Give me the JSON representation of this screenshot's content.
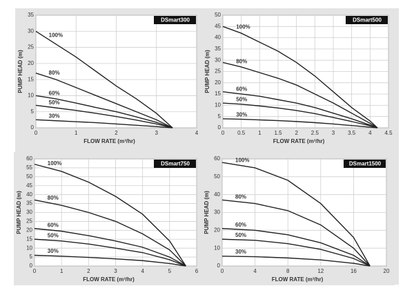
{
  "chart_data": [
    {
      "type": "line",
      "title": "DSmart300",
      "x_label": "FLOW RATE (m³/hr)",
      "y_label": "PUMP HEAD (m)",
      "x": [
        0,
        0.5,
        1,
        1.5,
        2,
        2.5,
        3,
        3.4
      ],
      "series": [
        {
          "name": "100%",
          "color": "#222222",
          "values": [
            30,
            26,
            22,
            17.5,
            13,
            9,
            4.5,
            0
          ]
        },
        {
          "name": "80%",
          "color": "#222222",
          "values": [
            17,
            15,
            12.5,
            10,
            7.5,
            5,
            2.5,
            0
          ]
        },
        {
          "name": "60%",
          "color": "#222222",
          "values": [
            10,
            9,
            7.7,
            6.3,
            5,
            3.4,
            1.7,
            0
          ]
        },
        {
          "name": "50%",
          "color": "#222222",
          "values": [
            7,
            6.2,
            5.4,
            4.5,
            3.5,
            2.4,
            1.2,
            0
          ]
        },
        {
          "name": "30%",
          "color": "#222222",
          "values": [
            2.5,
            2.2,
            1.9,
            1.6,
            1.2,
            0.8,
            0.4,
            0
          ]
        }
      ],
      "xlim": [
        0,
        4
      ],
      "xticks": [
        0,
        1,
        2,
        3,
        4
      ],
      "ylim": [
        0,
        35
      ],
      "yticks": [
        0,
        5,
        10,
        15,
        20,
        25,
        30,
        35
      ],
      "grid": true
    },
    {
      "type": "line",
      "title": "DSmart500",
      "x_label": "FLOW RATE (m³/hr)",
      "y_label": "PUMP HEAD (m)",
      "x": [
        0,
        0.5,
        1,
        1.5,
        2,
        2.5,
        3,
        3.5,
        4,
        4.2
      ],
      "series": [
        {
          "name": "100%",
          "color": "#222222",
          "values": [
            45,
            42,
            38,
            34,
            29,
            23,
            16,
            9,
            3,
            0
          ]
        },
        {
          "name": "80%",
          "color": "#222222",
          "values": [
            29,
            27,
            24.5,
            22,
            19,
            15,
            11,
            6.5,
            2,
            0
          ]
        },
        {
          "name": "60%",
          "color": "#222222",
          "values": [
            16,
            15,
            14,
            12.5,
            11,
            9,
            6.5,
            4,
            1.2,
            0
          ]
        },
        {
          "name": "50%",
          "color": "#222222",
          "values": [
            11,
            10.5,
            9.7,
            8.8,
            7.7,
            6.3,
            4.6,
            2.8,
            0.9,
            0
          ]
        },
        {
          "name": "30%",
          "color": "#222222",
          "values": [
            4,
            3.8,
            3.5,
            3.2,
            2.8,
            2.3,
            1.7,
            1,
            0.3,
            0
          ]
        }
      ],
      "xlim": [
        0,
        4.5
      ],
      "xticks": [
        0,
        0.5,
        1,
        1.5,
        2,
        2.5,
        3,
        3.5,
        4,
        4.5
      ],
      "ylim": [
        0,
        50
      ],
      "yticks": [
        0,
        5,
        10,
        15,
        20,
        25,
        30,
        35,
        40,
        45,
        50
      ],
      "grid": true
    },
    {
      "type": "line",
      "title": "DSmart750",
      "x_label": "FLOW RATE (m³/hr)",
      "y_label": "PUMP HEAD (m)",
      "x": [
        0,
        1,
        2,
        3,
        4,
        5,
        5.6
      ],
      "series": [
        {
          "name": "100%",
          "color": "#222222",
          "values": [
            57,
            53,
            47,
            39,
            29,
            14,
            0
          ]
        },
        {
          "name": "80%",
          "color": "#222222",
          "values": [
            37,
            34,
            30,
            25,
            18,
            9,
            0
          ]
        },
        {
          "name": "60%",
          "color": "#222222",
          "values": [
            21,
            19.5,
            17,
            14,
            10.5,
            5,
            0
          ]
        },
        {
          "name": "50%",
          "color": "#222222",
          "values": [
            15,
            14,
            12.3,
            10,
            7.5,
            3.5,
            0
          ]
        },
        {
          "name": "30%",
          "color": "#222222",
          "values": [
            6,
            5.5,
            4.8,
            4,
            3,
            1.4,
            0
          ]
        }
      ],
      "xlim": [
        0,
        6
      ],
      "xticks": [
        0,
        1,
        2,
        3,
        4,
        5,
        6
      ],
      "ylim": [
        0,
        60
      ],
      "yticks": [
        0,
        5,
        10,
        15,
        20,
        25,
        30,
        35,
        40,
        45,
        50,
        55,
        60
      ],
      "grid": true
    },
    {
      "type": "line",
      "title": "DSmart1500",
      "x_label": "FLOW RATE (m³/hr)",
      "y_label": "PUMP HEAD (m)",
      "x": [
        0,
        4,
        8,
        12,
        16,
        18
      ],
      "series": [
        {
          "name": "100%",
          "color": "#222222",
          "values": [
            58,
            55,
            48,
            35,
            16,
            0
          ]
        },
        {
          "name": "80%",
          "color": "#222222",
          "values": [
            37,
            35,
            31,
            23,
            10,
            0
          ]
        },
        {
          "name": "60%",
          "color": "#222222",
          "values": [
            21,
            20,
            17.5,
            13,
            6,
            0
          ]
        },
        {
          "name": "50%",
          "color": "#222222",
          "values": [
            15,
            14.4,
            12.5,
            9.3,
            4.2,
            0
          ]
        },
        {
          "name": "30%",
          "color": "#222222",
          "values": [
            5.5,
            5.2,
            4.5,
            3.4,
            1.5,
            0
          ]
        }
      ],
      "xlim": [
        0,
        20
      ],
      "xticks": [
        0,
        4,
        8,
        12,
        16,
        20
      ],
      "ylim": [
        0,
        60
      ],
      "yticks": [
        0,
        10,
        20,
        30,
        40,
        50,
        60
      ],
      "grid": true
    }
  ]
}
